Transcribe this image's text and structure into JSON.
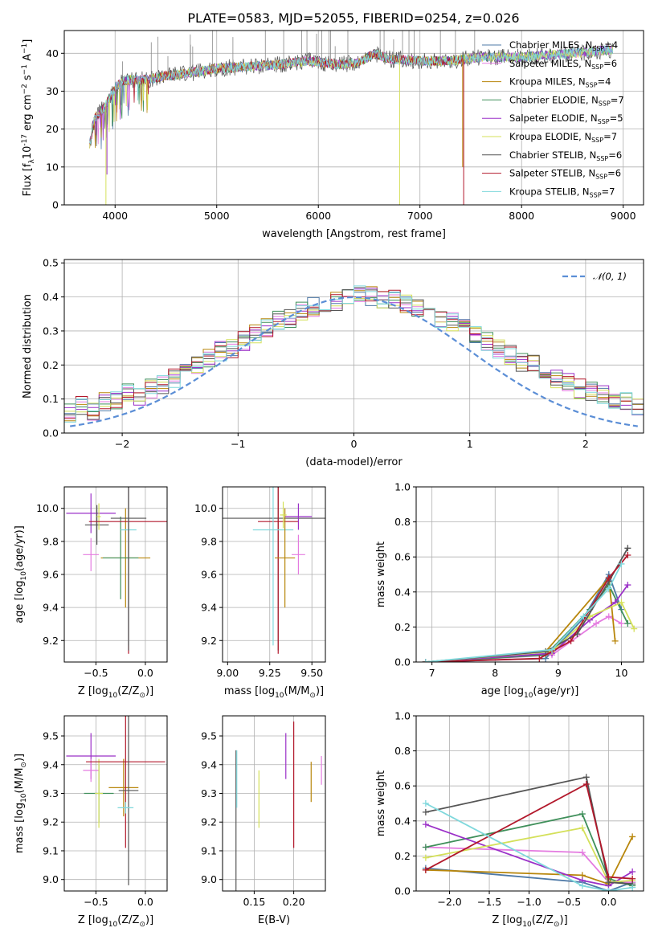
{
  "title": "PLATE=0583, MJD=52055, FIBERID=0254, z=0.026",
  "series_colors": [
    "#4e79a7",
    "#e47be0",
    "#b8860b",
    "#3f8f5a",
    "#9b30c8",
    "#d4e05a",
    "#555555",
    "#b2182b",
    "#7fd8dc"
  ],
  "legend_sub": "SSP",
  "legend": [
    {
      "name": "Chabrier MILES, N",
      "n": "=4"
    },
    {
      "name": "Salpeter MILES, N",
      "n": "=6"
    },
    {
      "name": "Kroupa MILES, N",
      "n": "=4"
    },
    {
      "name": "Chabrier ELODIE, N",
      "n": "=7"
    },
    {
      "name": "Salpeter ELODIE, N",
      "n": "=5"
    },
    {
      "name": "Kroupa ELODIE, N",
      "n": "=7"
    },
    {
      "name": "Chabrier STELIB, N",
      "n": "=6"
    },
    {
      "name": "Salpeter STELIB, N",
      "n": "=6"
    },
    {
      "name": "Kroupa STELIB, N",
      "n": "=7"
    }
  ],
  "chart_data": [
    {
      "id": "spectrum",
      "type": "line",
      "xlabel": "wavelength [Angstrom, rest frame]",
      "ylabel": "Flux [f",
      "ylabel_rest": "10",
      "ylabel_exp": "-17",
      "ylabel_units": " erg cm",
      "xlim": [
        3500,
        9200
      ],
      "ylim": [
        0,
        46
      ],
      "xticks": [
        4000,
        5000,
        6000,
        7000,
        8000,
        9000
      ],
      "yticks": [
        0,
        10,
        20,
        30,
        40
      ],
      "continuum": [
        [
          3750,
          16
        ],
        [
          3800,
          23
        ],
        [
          3900,
          26
        ],
        [
          4000,
          31
        ],
        [
          4100,
          33
        ],
        [
          4300,
          33
        ],
        [
          4500,
          34
        ],
        [
          4800,
          35
        ],
        [
          5000,
          36
        ],
        [
          5300,
          36.5
        ],
        [
          5600,
          37
        ],
        [
          5900,
          38
        ],
        [
          6200,
          37
        ],
        [
          6400,
          37.5
        ],
        [
          6550,
          40
        ],
        [
          6700,
          38.5
        ],
        [
          7000,
          38
        ],
        [
          7300,
          38
        ],
        [
          7600,
          39
        ],
        [
          8000,
          39
        ],
        [
          8500,
          40
        ],
        [
          8900,
          41
        ]
      ],
      "dropouts": [
        {
          "series": 4,
          "x": 3920,
          "y": 8
        },
        {
          "series": 5,
          "x": 3910,
          "y": 0
        },
        {
          "series": 5,
          "x": 6800,
          "y": 0
        },
        {
          "series": 7,
          "x": 7430,
          "y": 0
        },
        {
          "series": 2,
          "x": 7420,
          "y": 10
        }
      ]
    },
    {
      "id": "residuals",
      "type": "step",
      "xlabel": "(data-model)/error",
      "ylabel": "Normed distribution",
      "xlim": [
        -2.5,
        2.5
      ],
      "ylim": [
        0,
        0.51
      ],
      "xticks": [
        -2,
        -1,
        0,
        1,
        2
      ],
      "xticklabels": [
        "−2",
        "−1",
        "0",
        "1",
        "2"
      ],
      "yticks": [
        0.0,
        0.1,
        0.2,
        0.3,
        0.4,
        0.5
      ],
      "yticklabels": [
        "0.0",
        "0.1",
        "0.2",
        "0.3",
        "0.4",
        "0.5"
      ],
      "reference": {
        "label": "𝒩(0, 1)",
        "mu": 0,
        "sigma": 1,
        "color": "#5b8ed6"
      },
      "bin_width": 0.1,
      "hist_seed": [
        0.05,
        0.06,
        0.05,
        0.07,
        0.07,
        0.06,
        0.08,
        0.06,
        0.09,
        0.1,
        0.12,
        0.11,
        0.13,
        0.14,
        0.16,
        0.18,
        0.2,
        0.22,
        0.24,
        0.25,
        0.27,
        0.29,
        0.31,
        0.33,
        0.34,
        0.36,
        0.37,
        0.38,
        0.39,
        0.4,
        0.41,
        0.4,
        0.39,
        0.39,
        0.38,
        0.37,
        0.36,
        0.34,
        0.33,
        0.31,
        0.29,
        0.27,
        0.25,
        0.23,
        0.21,
        0.2,
        0.18,
        0.16,
        0.15,
        0.13,
        0.12,
        0.11,
        0.1,
        0.09,
        0.08,
        0.07,
        0.07,
        0.06,
        0.05,
        0.05
      ]
    },
    {
      "id": "age-vs-Z",
      "type": "errorbar",
      "xlabel": "Z [log",
      "xlabel_sub": "10",
      "xlabel_rest": "(Z/Z",
      "xlabel_sun": "⊙",
      "xlabel_end": ")]",
      "ylabel": "age  [log",
      "ylabel_sub": "10",
      "ylabel_rest": "(age/yr)]",
      "xlim": [
        -0.82,
        0.22
      ],
      "ylim": [
        9.07,
        10.13
      ],
      "xticks": [
        -0.5,
        0.0
      ],
      "xticklabels": [
        "−0.5",
        "0.0"
      ],
      "yticks": [
        9.2,
        9.4,
        9.6,
        9.8,
        10.0
      ],
      "yticklabels": [
        "9.2",
        "9.4",
        "9.6",
        "9.8",
        "10.0"
      ],
      "points": [
        {
          "s": 1,
          "x": -0.55,
          "y": 9.72,
          "xe": 0.08,
          "ye": 0.1
        },
        {
          "s": 4,
          "x": -0.55,
          "y": 9.97,
          "xe": 0.25,
          "ye": 0.12
        },
        {
          "s": 6,
          "x": -0.49,
          "y": 9.9,
          "xe": 0.12,
          "ye": 0.12
        },
        {
          "s": 5,
          "x": -0.47,
          "y": 9.95,
          "xe": 0.02,
          "ye": 0.08
        },
        {
          "s": 2,
          "x": -0.2,
          "y": 9.7,
          "xe": 0.25,
          "ye": 0.3
        },
        {
          "s": 3,
          "x": -0.25,
          "y": 9.7,
          "xe": 0.18,
          "ye": 0.25
        },
        {
          "s": 7,
          "x": -0.17,
          "y": 9.92,
          "xe": 0.4,
          "ye": 0.8
        },
        {
          "s": 8,
          "x": -0.17,
          "y": 9.87,
          "xe": 0.08,
          "ye": 0.7
        },
        {
          "s": 6,
          "x": -0.17,
          "y": 9.94,
          "xe": 0.18,
          "ye": 0.8
        }
      ]
    },
    {
      "id": "age-vs-mass",
      "type": "errorbar",
      "xlabel": "mass [log",
      "xlabel_sub": "10",
      "xlabel_rest": "(M/M",
      "xlabel_sun": "⊙",
      "xlabel_end": ")]",
      "xlim": [
        8.97,
        9.58
      ],
      "ylim": [
        9.07,
        10.13
      ],
      "xticks": [
        9.0,
        9.25,
        9.5
      ],
      "xticklabels": [
        "9.00",
        "9.25",
        "9.50"
      ],
      "yticks": [
        9.2,
        9.4,
        9.6,
        9.8,
        10.0
      ],
      "yticklabels": [
        "9.2",
        "9.4",
        "9.6",
        "9.8",
        "10.0"
      ],
      "points": [
        {
          "s": 6,
          "x": 9.3,
          "y": 9.94,
          "xe": 0.33,
          "ye": 0.8
        },
        {
          "s": 7,
          "x": 9.3,
          "y": 9.92,
          "xe": 0.12,
          "ye": 0.8
        },
        {
          "s": 8,
          "x": 9.27,
          "y": 9.87,
          "xe": 0.12,
          "ye": 0.7
        },
        {
          "s": 4,
          "x": 9.42,
          "y": 9.95,
          "xe": 0.08,
          "ye": 0.08
        },
        {
          "s": 1,
          "x": 9.42,
          "y": 9.72,
          "xe": 0.04,
          "ye": 0.12
        },
        {
          "s": 2,
          "x": 9.34,
          "y": 9.7,
          "xe": 0.06,
          "ye": 0.3
        },
        {
          "s": 5,
          "x": 9.33,
          "y": 9.96,
          "xe": 0.02,
          "ye": 0.08
        }
      ]
    },
    {
      "id": "massweight-vs-age",
      "type": "line",
      "xlabel": "age  [log",
      "xlabel_sub": "10",
      "xlabel_rest": "(age/yr)]",
      "ylabel": "mass weight",
      "xlim": [
        6.75,
        10.35
      ],
      "ylim": [
        0,
        1.0
      ],
      "xticks": [
        7,
        8,
        9,
        10
      ],
      "xticklabels": [
        "7",
        "8",
        "9",
        "10"
      ],
      "yticks": [
        0.0,
        0.2,
        0.4,
        0.6,
        0.8,
        1.0
      ],
      "yticklabels": [
        "0.0",
        "0.2",
        "0.4",
        "0.6",
        "0.8",
        "1.0"
      ],
      "lines": [
        {
          "s": 0,
          "pts": [
            [
              6.9,
              0.0
            ],
            [
              8.8,
              0.02
            ],
            [
              9.4,
              0.25
            ],
            [
              9.8,
              0.5
            ],
            [
              10.0,
              0.3
            ]
          ]
        },
        {
          "s": 1,
          "pts": [
            [
              6.9,
              0.0
            ],
            [
              8.9,
              0.04
            ],
            [
              9.6,
              0.22
            ],
            [
              9.8,
              0.26
            ],
            [
              10.0,
              0.22
            ]
          ]
        },
        {
          "s": 2,
          "pts": [
            [
              6.9,
              0.0
            ],
            [
              8.8,
              0.06
            ],
            [
              9.8,
              0.48
            ],
            [
              9.9,
              0.12
            ]
          ]
        },
        {
          "s": 3,
          "pts": [
            [
              6.9,
              0.0
            ],
            [
              8.8,
              0.04
            ],
            [
              9.5,
              0.3
            ],
            [
              9.8,
              0.44
            ],
            [
              10.1,
              0.22
            ]
          ]
        },
        {
          "s": 4,
          "pts": [
            [
              6.9,
              0.0
            ],
            [
              8.9,
              0.05
            ],
            [
              9.5,
              0.24
            ],
            [
              9.9,
              0.34
            ],
            [
              10.1,
              0.44
            ]
          ]
        },
        {
          "s": 5,
          "pts": [
            [
              6.9,
              0.0
            ],
            [
              8.9,
              0.06
            ],
            [
              9.5,
              0.26
            ],
            [
              10.0,
              0.34
            ],
            [
              10.2,
              0.19
            ]
          ]
        },
        {
          "s": 6,
          "pts": [
            [
              6.9,
              0.0
            ],
            [
              8.8,
              0.06
            ],
            [
              9.3,
              0.16
            ],
            [
              9.8,
              0.46
            ],
            [
              10.1,
              0.65
            ]
          ]
        },
        {
          "s": 7,
          "pts": [
            [
              6.9,
              0.0
            ],
            [
              8.7,
              0.02
            ],
            [
              9.2,
              0.12
            ],
            [
              9.8,
              0.48
            ],
            [
              10.1,
              0.61
            ]
          ]
        },
        {
          "s": 8,
          "pts": [
            [
              6.9,
              0.0
            ],
            [
              8.9,
              0.07
            ],
            [
              9.4,
              0.26
            ],
            [
              9.8,
              0.42
            ],
            [
              10.0,
              0.56
            ]
          ]
        }
      ]
    },
    {
      "id": "mass-vs-Z",
      "type": "errorbar",
      "xlabel": "Z [log",
      "xlabel_sub": "10",
      "xlabel_rest": "(Z/Z",
      "xlabel_sun": "⊙",
      "xlabel_end": ")]",
      "ylabel": "mass [log",
      "ylabel_sub": "10",
      "ylabel_rest": "(M/M",
      "ylabel_sun": "⊙",
      "ylabel_end": ")]",
      "xlim": [
        -0.82,
        0.22
      ],
      "ylim": [
        8.96,
        9.57
      ],
      "xticks": [
        -0.5,
        0.0
      ],
      "xticklabels": [
        "−0.5",
        "0.0"
      ],
      "yticks": [
        9.0,
        9.1,
        9.2,
        9.3,
        9.4,
        9.5
      ],
      "yticklabels": [
        "9.0",
        "9.1",
        "9.2",
        "9.3",
        "9.4",
        "9.5"
      ],
      "points": [
        {
          "s": 4,
          "x": -0.55,
          "y": 9.43,
          "xe": 0.25,
          "ye": 0.08
        },
        {
          "s": 1,
          "x": -0.55,
          "y": 9.38,
          "xe": 0.08,
          "ye": 0.04
        },
        {
          "s": 3,
          "x": -0.47,
          "y": 9.3,
          "xe": 0.15,
          "ye": 0.1
        },
        {
          "s": 5,
          "x": -0.47,
          "y": 9.3,
          "xe": 0.04,
          "ye": 0.12
        },
        {
          "s": 2,
          "x": -0.22,
          "y": 9.32,
          "xe": 0.15,
          "ye": 0.1
        },
        {
          "s": 7,
          "x": -0.2,
          "y": 9.41,
          "xe": 0.4,
          "ye": 0.3
        },
        {
          "s": 6,
          "x": -0.17,
          "y": 9.31,
          "xe": 0.1,
          "ye": 0.33
        },
        {
          "s": 8,
          "x": -0.2,
          "y": 9.25,
          "xe": 0.08,
          "ye": 0.02
        }
      ]
    },
    {
      "id": "mass-vs-EBV",
      "type": "errorbar",
      "xlabel": "E(B-V)",
      "xlim": [
        0.11,
        0.24
      ],
      "ylim": [
        8.96,
        9.57
      ],
      "xticks": [
        0.15,
        0.2
      ],
      "xticklabels": [
        "0.15",
        "0.20"
      ],
      "yticks": [
        9.0,
        9.1,
        9.2,
        9.3,
        9.4,
        9.5
      ],
      "yticklabels": [
        "9.0",
        "9.1",
        "9.2",
        "9.3",
        "9.4",
        "9.5"
      ],
      "points": [
        {
          "s": 6,
          "x": 0.127,
          "y": 9.2,
          "xe": 0,
          "ye": 0.25
        },
        {
          "s": 8,
          "x": 0.128,
          "y": 9.35,
          "xe": 0,
          "ye": 0.1
        },
        {
          "s": 5,
          "x": 0.156,
          "y": 9.28,
          "xe": 0,
          "ye": 0.1
        },
        {
          "s": 4,
          "x": 0.19,
          "y": 9.43,
          "xe": 0,
          "ye": 0.08
        },
        {
          "s": 7,
          "x": 0.2,
          "y": 9.33,
          "xe": 0,
          "ye": 0.22
        },
        {
          "s": 2,
          "x": 0.222,
          "y": 9.34,
          "xe": 0,
          "ye": 0.07
        },
        {
          "s": 1,
          "x": 0.235,
          "y": 9.38,
          "xe": 0,
          "ye": 0.05
        }
      ]
    },
    {
      "id": "massweight-vs-Z",
      "type": "line",
      "xlabel": "Z [log",
      "xlabel_sub": "10",
      "xlabel_rest": "(Z/Z",
      "xlabel_sun": "⊙",
      "xlabel_end": ")]",
      "ylabel": "mass weight",
      "xlim": [
        -2.42,
        0.44
      ],
      "ylim": [
        0,
        1.0
      ],
      "xticks": [
        -2.0,
        -1.5,
        -1.0,
        -0.5,
        0.0
      ],
      "xticklabels": [
        "−2.0",
        "−1.5",
        "−1.0",
        "−0.5",
        "0.0"
      ],
      "yticks": [
        0.0,
        0.2,
        0.4,
        0.6,
        0.8,
        1.0
      ],
      "yticklabels": [
        "0.0",
        "0.2",
        "0.4",
        "0.6",
        "0.8",
        "1.0"
      ],
      "lines": [
        {
          "s": 0,
          "pts": [
            [
              -2.3,
              0.13
            ],
            [
              -0.33,
              0.05
            ],
            [
              0.0,
              0.0
            ],
            [
              0.3,
              0.05
            ]
          ]
        },
        {
          "s": 1,
          "pts": [
            [
              -2.3,
              0.25
            ],
            [
              -0.33,
              0.22
            ],
            [
              0.0,
              0.05
            ],
            [
              0.3,
              0.05
            ]
          ]
        },
        {
          "s": 2,
          "pts": [
            [
              -2.3,
              0.12
            ],
            [
              -0.33,
              0.09
            ],
            [
              0.0,
              0.04
            ],
            [
              0.3,
              0.31
            ]
          ]
        },
        {
          "s": 3,
          "pts": [
            [
              -2.3,
              0.25
            ],
            [
              -0.33,
              0.44
            ],
            [
              0.0,
              0.07
            ],
            [
              0.3,
              0.03
            ]
          ]
        },
        {
          "s": 4,
          "pts": [
            [
              -2.3,
              0.38
            ],
            [
              -0.33,
              0.06
            ],
            [
              0.0,
              0.03
            ],
            [
              0.3,
              0.11
            ]
          ]
        },
        {
          "s": 5,
          "pts": [
            [
              -2.3,
              0.19
            ],
            [
              -0.33,
              0.36
            ],
            [
              0.0,
              0.05
            ],
            [
              0.3,
              0.06
            ]
          ]
        },
        {
          "s": 6,
          "pts": [
            [
              -2.3,
              0.45
            ],
            [
              -0.28,
              0.65
            ],
            [
              0.0,
              0.05
            ],
            [
              0.3,
              0.04
            ]
          ]
        },
        {
          "s": 7,
          "pts": [
            [
              -2.3,
              0.12
            ],
            [
              -0.28,
              0.61
            ],
            [
              0.0,
              0.08
            ],
            [
              0.3,
              0.07
            ]
          ]
        },
        {
          "s": 8,
          "pts": [
            [
              -2.3,
              0.5
            ],
            [
              -0.33,
              0.03
            ],
            [
              0.0,
              0.0
            ],
            [
              0.3,
              0.02
            ]
          ]
        }
      ]
    }
  ]
}
